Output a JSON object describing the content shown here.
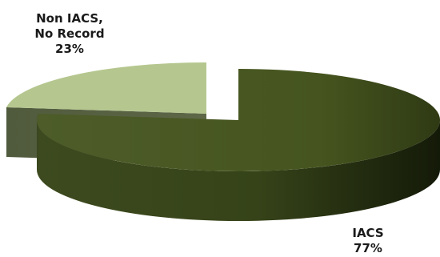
{
  "chart_data": {
    "type": "pie",
    "style": "3d-exploded",
    "slices": [
      {
        "label_lines": [
          "IACS"
        ],
        "value": 77,
        "value_label": "77%",
        "color": "#4b5a27"
      },
      {
        "label_lines": [
          "Non IACS,",
          "No Record"
        ],
        "value": 23,
        "value_label": "23%",
        "color": "#b5c78f"
      }
    ],
    "title": "",
    "legend": "none",
    "data_labels": "outside"
  }
}
